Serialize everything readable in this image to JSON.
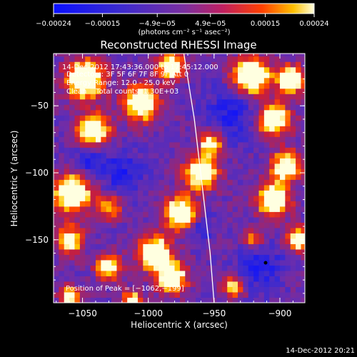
{
  "chart_data": {
    "type": "heatmap",
    "title": "Reconstructed RHESSI Image",
    "xlabel": "Heliocentric X (arcsec)",
    "ylabel": "Heliocentric Y (arcsec)",
    "xlim": [
      -1072,
      -881
    ],
    "ylim": [
      -197,
      -11
    ],
    "xticks": [
      -1050,
      -1000,
      -950,
      -900
    ],
    "yticks": [
      -50,
      -100,
      -150
    ],
    "xtick_labels": [
      "−1050",
      "−1000",
      "−950",
      "−900"
    ],
    "ytick_labels": [
      "−50",
      "−100",
      "−150"
    ],
    "colorbar": {
      "ticks": [
        -0.00024,
        -0.00015,
        -4.9e-05,
        4.9e-05,
        0.00015,
        0.00024
      ],
      "tick_labels": [
        "−0.00024",
        "−0.00015",
        "−4.9e−05",
        "4.9e−05",
        "0.00015",
        "0.00024"
      ],
      "unit_label": "(photons cm⁻² s⁻¹ asec⁻²)"
    },
    "annotations": [
      "14-Dec-2012 17:43:36.000 to 17:45:12.000",
      "Detectors: 3F 5F 6F 7F 8F 9F Att 0",
      "Energy Range: 12.0 - 25.0 keV",
      "Clean    Total counts: 1.30E+03"
    ],
    "peak_label": "Position of Peak = [−1062,−199]",
    "limb_arc": [
      [
        -973,
        -11
      ],
      [
        -965,
        -60
      ],
      [
        -959,
        -110
      ],
      [
        -953,
        -160
      ],
      [
        -950,
        -197
      ]
    ],
    "footer_timestamp": "14-Dec-2012 20:21",
    "colors": {
      "background": "#000000",
      "text": "#ffffff",
      "mid": "#7a2fa0"
    }
  }
}
